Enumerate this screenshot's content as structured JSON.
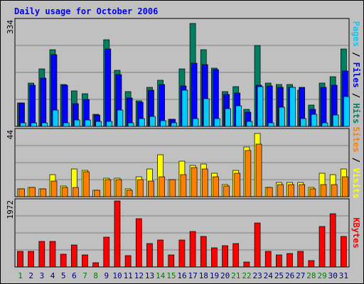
{
  "chart_data": {
    "type": "bar",
    "title": "Daily usage for October 2006",
    "categories": [
      "1",
      "2",
      "3",
      "4",
      "5",
      "6",
      "7",
      "8",
      "9",
      "10",
      "11",
      "12",
      "13",
      "14",
      "15",
      "16",
      "17",
      "18",
      "19",
      "20",
      "21",
      "22",
      "23",
      "24",
      "25",
      "26",
      "27",
      "28",
      "29",
      "30",
      "31"
    ],
    "weekend_days": [
      "1",
      "7",
      "8",
      "14",
      "15",
      "21",
      "22",
      "28",
      "29"
    ],
    "panels": [
      {
        "id": "hits",
        "scale_label": "334",
        "ymax": 334,
        "right_label": [
          {
            "text": "Pages",
            "color": "#00ccff"
          },
          {
            "text": " / ",
            "color": "#000000"
          },
          {
            "text": "Files",
            "color": "#0000ff"
          },
          {
            "text": " / ",
            "color": "#000000"
          },
          {
            "text": "Hits",
            "color": "#008060"
          }
        ],
        "series": [
          {
            "name": "Hits",
            "color": "#008060",
            "values": [
              72,
              135,
              178,
              238,
              130,
              110,
              100,
              38,
              268,
              173,
              108,
              80,
              121,
              143,
              22,
              178,
              318,
              238,
              180,
              108,
              124,
              52,
              250,
              135,
              130,
              130,
              111,
              66,
              135,
              154,
              240
            ]
          },
          {
            "name": "Files",
            "color": "#0000ff",
            "values": [
              72,
              128,
              150,
              223,
              127,
              70,
              84,
              35,
              240,
              160,
              88,
              75,
              112,
              130,
              22,
              126,
              196,
              192,
              175,
              98,
              104,
              44,
              128,
              125,
              120,
              120,
              120,
              52,
              120,
              128,
              172
            ]
          },
          {
            "name": "Pages",
            "color": "#00ccff",
            "values": [
              10,
              12,
              12,
              50,
              10,
              20,
              20,
              15,
              15,
              50,
              10,
              24,
              30,
              18,
              10,
              112,
              24,
              86,
              25,
              55,
              63,
              15,
              123,
              10,
              60,
              120,
              25,
              37,
              12,
              35,
              92
            ]
          }
        ]
      },
      {
        "id": "visits",
        "scale_label": "44",
        "ymax": 44,
        "right_label": [
          {
            "text": "Sites",
            "color": "#ff8000"
          },
          {
            "text": " / ",
            "color": "#000000"
          },
          {
            "text": "Visits",
            "color": "#ffff00"
          }
        ],
        "series": [
          {
            "name": "Visits",
            "color": "#ffff00",
            "values": [
              5,
              6,
              5,
              14,
              7,
              18,
              17,
              4,
              12,
              12,
              5,
              13,
              18,
              27,
              11,
              23,
              20,
              21,
              15,
              8,
              17,
              32,
              41,
              6,
              9,
              9,
              9,
              6,
              15,
              14,
              18
            ]
          },
          {
            "name": "Sites",
            "color": "#ff8000",
            "values": [
              5,
              6,
              5,
              10,
              6,
              6,
              16,
              4,
              11,
              11,
              4,
              11,
              10,
              13,
              11,
              14,
              19,
              18,
              13,
              7,
              15,
              30,
              34,
              6,
              8,
              8,
              8,
              5,
              8,
              8,
              13
            ]
          }
        ]
      },
      {
        "id": "kbytes",
        "scale_label": "1972",
        "ymax": 1972,
        "right_label": [
          {
            "text": "KBytes",
            "color": "#ff0000"
          }
        ],
        "series": [
          {
            "name": "KBytes",
            "color": "#ff0000",
            "values": [
              450,
              450,
              740,
              740,
              380,
              640,
              340,
              130,
              860,
              1920,
              320,
              1400,
              670,
              780,
              350,
              790,
              1030,
              890,
              560,
              620,
              680,
              140,
              1280,
              450,
              350,
              390,
              460,
              180,
              1180,
              1540,
              890
            ]
          }
        ]
      }
    ]
  },
  "colors": {
    "background": "#c0c0c0",
    "border": "#000000",
    "grid": "#808080",
    "title": "#0000ff",
    "weekday_label": "#000080",
    "weekend_label": "#008000"
  }
}
